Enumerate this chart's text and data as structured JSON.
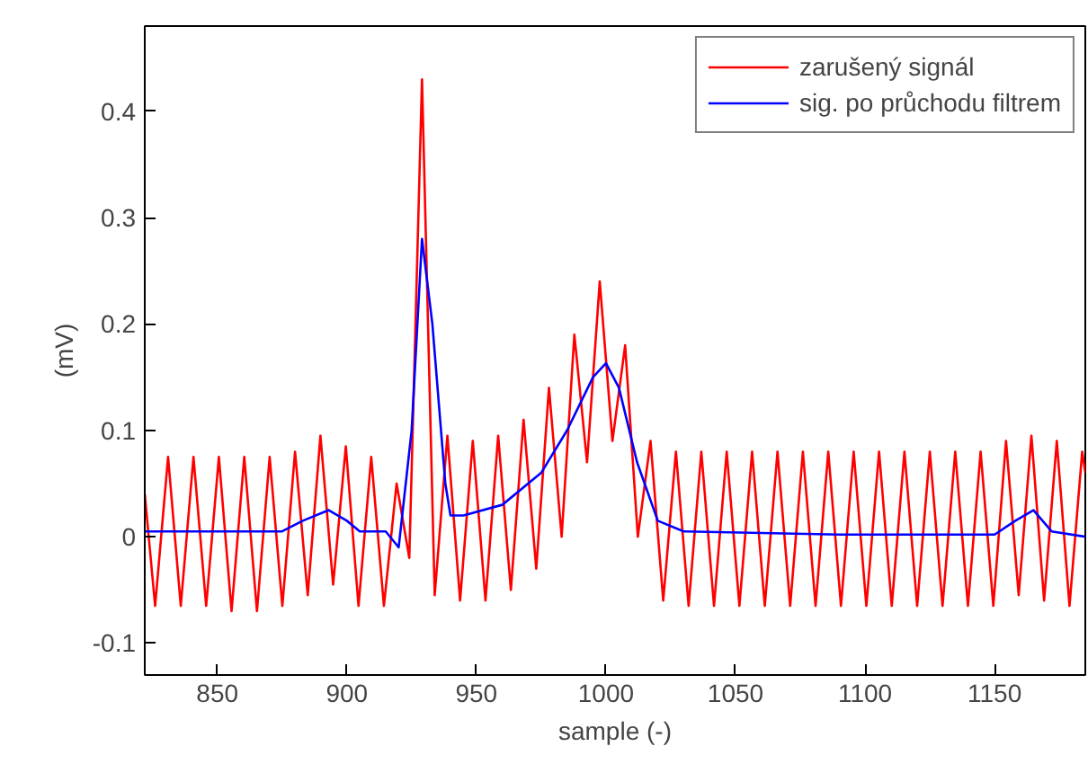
{
  "chart_data": {
    "type": "line",
    "xlabel": "sample (-)",
    "ylabel": "(mV)",
    "xlim": [
      822,
      1185
    ],
    "ylim": [
      -0.13,
      0.48
    ],
    "xticks": [
      850,
      900,
      950,
      1000,
      1050,
      1100,
      1150
    ],
    "yticks": [
      -0.1,
      0,
      0.1,
      0.2,
      0.3,
      0.4
    ],
    "grid": false,
    "legend": "top right",
    "line_style": "solid",
    "marker": "none",
    "series": [
      {
        "name": "zarušený signál",
        "color": "#ff0000",
        "x": [
          822,
          826,
          831,
          835.9,
          840.8,
          845.7,
          850.6,
          855.5,
          860.4,
          865.3,
          870.2,
          875.1,
          880,
          884.9,
          889.8,
          894.7,
          899.6,
          904.5,
          909.4,
          914.3,
          919.2,
          924.1,
          929,
          933.9,
          938.8,
          943.7,
          948.6,
          953.5,
          958.4,
          963.3,
          968.2,
          973.1,
          978,
          982.9,
          987.8,
          992.7,
          997.6,
          1002.5,
          1007.4,
          1012.3,
          1017.2,
          1022.1,
          1027,
          1031.9,
          1036.8,
          1041.7,
          1046.6,
          1051.5,
          1056.4,
          1061.3,
          1066.2,
          1071.1,
          1076,
          1080.9,
          1085.8,
          1090.7,
          1095.6,
          1100.5,
          1105.4,
          1110.3,
          1115.2,
          1120.1,
          1125,
          1129.9,
          1134.8,
          1139.7,
          1144.6,
          1149.5,
          1154.4,
          1159.3,
          1164.2,
          1169.1,
          1174,
          1178.9,
          1183.8,
          1185
        ],
        "values": [
          0.04,
          -0.065,
          0.075,
          -0.065,
          0.075,
          -0.065,
          0.075,
          -0.07,
          0.075,
          -0.07,
          0.075,
          -0.065,
          0.08,
          -0.055,
          0.095,
          -0.045,
          0.085,
          -0.065,
          0.075,
          -0.065,
          0.05,
          -0.02,
          0.43,
          -0.055,
          0.095,
          -0.06,
          0.09,
          -0.06,
          0.095,
          -0.05,
          0.11,
          -0.03,
          0.14,
          0.0,
          0.19,
          0.07,
          0.24,
          0.09,
          0.18,
          0.0,
          0.09,
          -0.06,
          0.08,
          -0.065,
          0.08,
          -0.065,
          0.08,
          -0.065,
          0.08,
          -0.065,
          0.08,
          -0.065,
          0.08,
          -0.065,
          0.08,
          -0.065,
          0.08,
          -0.065,
          0.08,
          -0.065,
          0.08,
          -0.065,
          0.08,
          -0.065,
          0.08,
          -0.065,
          0.08,
          -0.065,
          0.09,
          -0.055,
          0.095,
          -0.06,
          0.09,
          -0.065,
          0.08,
          0.06
        ]
      },
      {
        "name": "sig. po průchodu filtrem",
        "color": "#0000ff",
        "x": [
          822,
          875,
          883,
          893,
          900,
          905,
          915,
          920,
          925,
          929,
          933,
          938,
          940,
          945,
          960,
          975,
          985,
          995,
          1000,
          1005,
          1012,
          1020,
          1030,
          1090,
          1150,
          1158,
          1165,
          1172,
          1185
        ],
        "values": [
          0.005,
          0.005,
          0.015,
          0.025,
          0.015,
          0.005,
          0.005,
          -0.01,
          0.1,
          0.28,
          0.2,
          0.05,
          0.02,
          0.02,
          0.03,
          0.06,
          0.1,
          0.15,
          0.163,
          0.14,
          0.07,
          0.015,
          0.005,
          0.002,
          0.002,
          0.015,
          0.025,
          0.005,
          0.0
        ]
      }
    ]
  }
}
